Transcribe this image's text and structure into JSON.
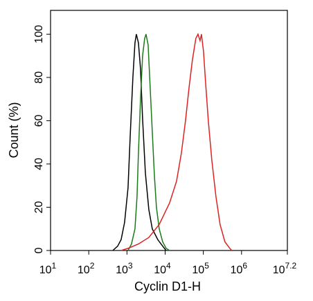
{
  "chart_data": {
    "type": "line",
    "xlabel": "Cyclin D1-H",
    "ylabel": "Count  (%)",
    "xscale": "log",
    "xlim": [
      10,
      15848932
    ],
    "ylim": [
      0,
      111
    ],
    "xticks": [
      {
        "value": 10,
        "label": "10",
        "superscript": "1"
      },
      {
        "value": 100,
        "label": "10",
        "superscript": "2"
      },
      {
        "value": 1000,
        "label": "10",
        "superscript": "3"
      },
      {
        "value": 10000,
        "label": "10",
        "superscript": "4"
      },
      {
        "value": 100000,
        "label": "10",
        "superscript": "5"
      },
      {
        "value": 1000000,
        "label": "10",
        "superscript": "6"
      },
      {
        "value": 15848932,
        "label": "10",
        "superscript": "7.2"
      }
    ],
    "yticks": [
      0,
      20,
      40,
      60,
      80,
      100
    ],
    "series": [
      {
        "color": "#000000",
        "x": [
          427,
          571,
          705,
          868,
          1069,
          1211,
          1431,
          1622,
          1763,
          1999,
          2265,
          2566,
          3033,
          3735,
          4603,
          6427,
          8606,
          10600
        ],
        "values": [
          0,
          2,
          5,
          13,
          29,
          52,
          80,
          96,
          100,
          96,
          84,
          61,
          36,
          19,
          10,
          5,
          2,
          0
        ]
      },
      {
        "color": "#1a7a1a",
        "x": [
          1069,
          1314,
          1622,
          1838,
          1999,
          2265,
          2566,
          2908,
          3164,
          3585,
          4064,
          4603,
          5216,
          5912,
          6988,
          8606,
          10600,
          13050
        ],
        "values": [
          0,
          3,
          10,
          25,
          45,
          70,
          90,
          98,
          100,
          95,
          75,
          55,
          35,
          20,
          10,
          4,
          1,
          0
        ]
      },
      {
        "color": "#dd2222",
        "x": [
          705,
          1069,
          1999,
          3735,
          6988,
          13050,
          19810,
          26550,
          34100,
          42000,
          51700,
          63700,
          72300,
          81900,
          89000,
          100900,
          114300,
          135000,
          166300,
          213600,
          274300,
          367000,
          492000,
          557000
        ],
        "values": [
          0,
          1,
          3,
          6,
          12,
          22,
          32,
          45,
          60,
          75,
          88,
          98,
          100,
          97,
          100,
          92,
          78,
          60,
          42,
          25,
          12,
          4,
          1,
          0
        ]
      }
    ]
  }
}
